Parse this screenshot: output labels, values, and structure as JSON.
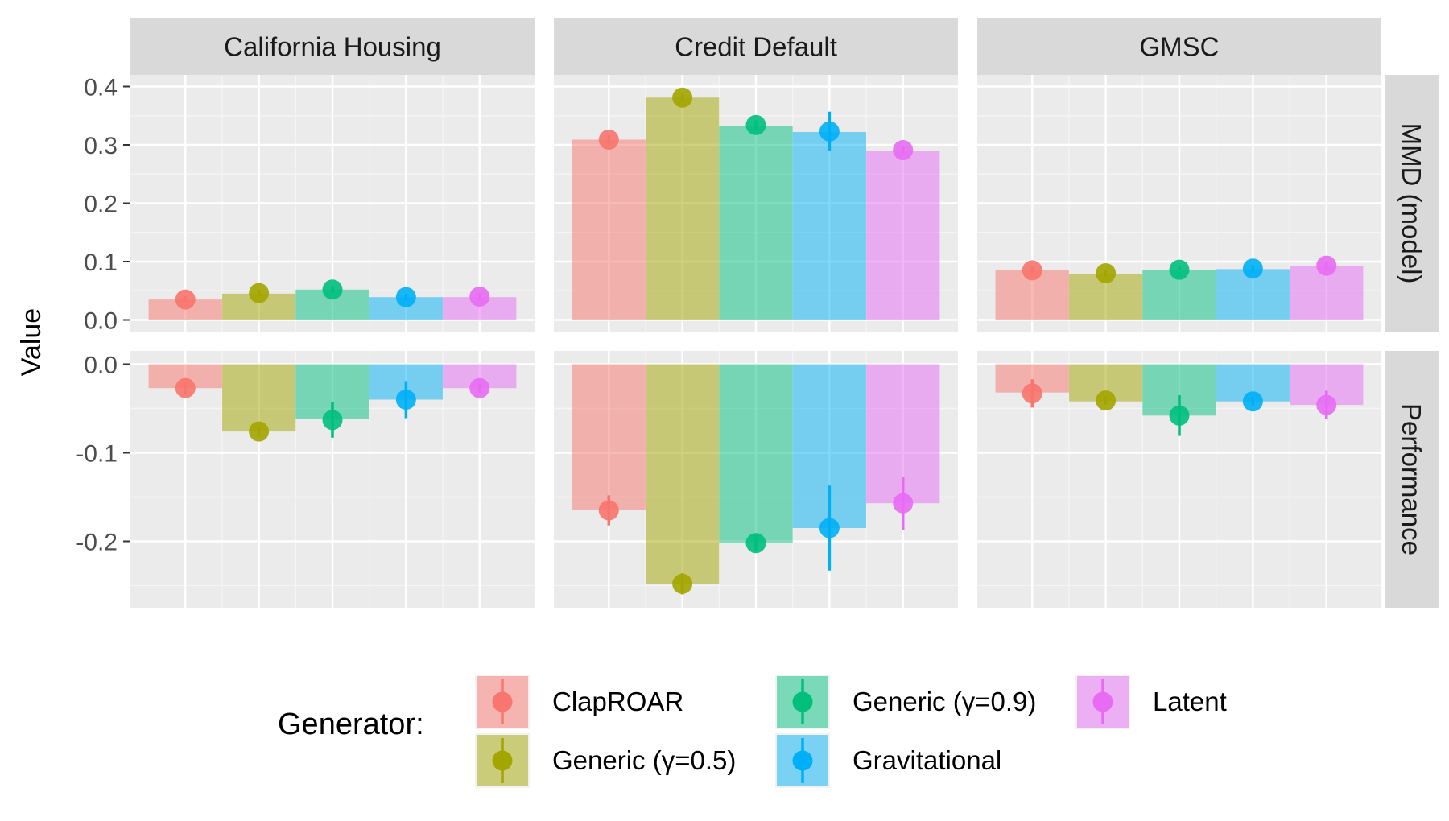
{
  "chart_data": {
    "type": "bar",
    "ylabel": "Value",
    "legend_title": "Generator:",
    "legend_position": "bottom",
    "facet_columns": [
      "California Housing",
      "Credit Default",
      "GMSC"
    ],
    "facet_rows": [
      "MMD (model)",
      "Performance"
    ],
    "series": [
      {
        "name": "ClapROAR",
        "color": "#F8766D"
      },
      {
        "name": "Generic (γ=0.5)",
        "color": "#A3A500"
      },
      {
        "name": "Generic (γ=0.9)",
        "color": "#00BF7D"
      },
      {
        "name": "Gravitational",
        "color": "#00B0F6"
      },
      {
        "name": "Latent",
        "color": "#E76BF3"
      }
    ],
    "rows": [
      {
        "name": "MMD (model)",
        "ylim": [
          -0.02,
          0.42
        ],
        "yticks": [
          0.0,
          0.1,
          0.2,
          0.3,
          0.4
        ],
        "tick_labels": [
          "0.0",
          "0.1",
          "0.2",
          "0.3",
          "0.4"
        ],
        "panels": [
          {
            "column": "California Housing",
            "bars": [
              0.035,
              0.045,
              0.052,
              0.039,
              0.039
            ],
            "points": [
              0.035,
              0.046,
              0.052,
              0.039,
              0.04
            ],
            "err": [
              0.006,
              0.006,
              0.006,
              0.006,
              0.006
            ]
          },
          {
            "column": "Credit Default",
            "bars": [
              0.309,
              0.381,
              0.333,
              0.322,
              0.29
            ],
            "points": [
              0.309,
              0.381,
              0.334,
              0.323,
              0.291
            ],
            "err": [
              0.008,
              0.008,
              0.008,
              0.034,
              0.006
            ]
          },
          {
            "column": "GMSC",
            "bars": [
              0.085,
              0.078,
              0.085,
              0.087,
              0.092
            ],
            "points": [
              0.085,
              0.08,
              0.086,
              0.088,
              0.093
            ],
            "err": [
              0.006,
              0.006,
              0.006,
              0.006,
              0.006
            ]
          }
        ]
      },
      {
        "name": "Performance",
        "ylim": [
          -0.275,
          0.015
        ],
        "yticks": [
          0.0,
          -0.1,
          -0.2
        ],
        "tick_labels": [
          "0.0",
          "-0.1",
          "-0.2"
        ],
        "panels": [
          {
            "column": "California Housing",
            "bars": [
              -0.027,
              -0.076,
              -0.062,
              -0.04,
              -0.027
            ],
            "points": [
              -0.027,
              -0.076,
              -0.063,
              -0.04,
              -0.027
            ],
            "err": [
              0.006,
              0.006,
              0.02,
              0.021,
              0.005
            ]
          },
          {
            "column": "Credit Default",
            "bars": [
              -0.165,
              -0.248,
              -0.202,
              -0.185,
              -0.157
            ],
            "points": [
              -0.165,
              -0.248,
              -0.202,
              -0.185,
              -0.157
            ],
            "err": [
              0.017,
              0.012,
              0.009,
              0.048,
              0.03
            ]
          },
          {
            "column": "GMSC",
            "bars": [
              -0.032,
              -0.042,
              -0.058,
              -0.042,
              -0.046
            ],
            "points": [
              -0.033,
              -0.041,
              -0.058,
              -0.042,
              -0.046
            ],
            "err": [
              0.016,
              0.005,
              0.023,
              0.005,
              0.016
            ]
          }
        ]
      }
    ]
  }
}
